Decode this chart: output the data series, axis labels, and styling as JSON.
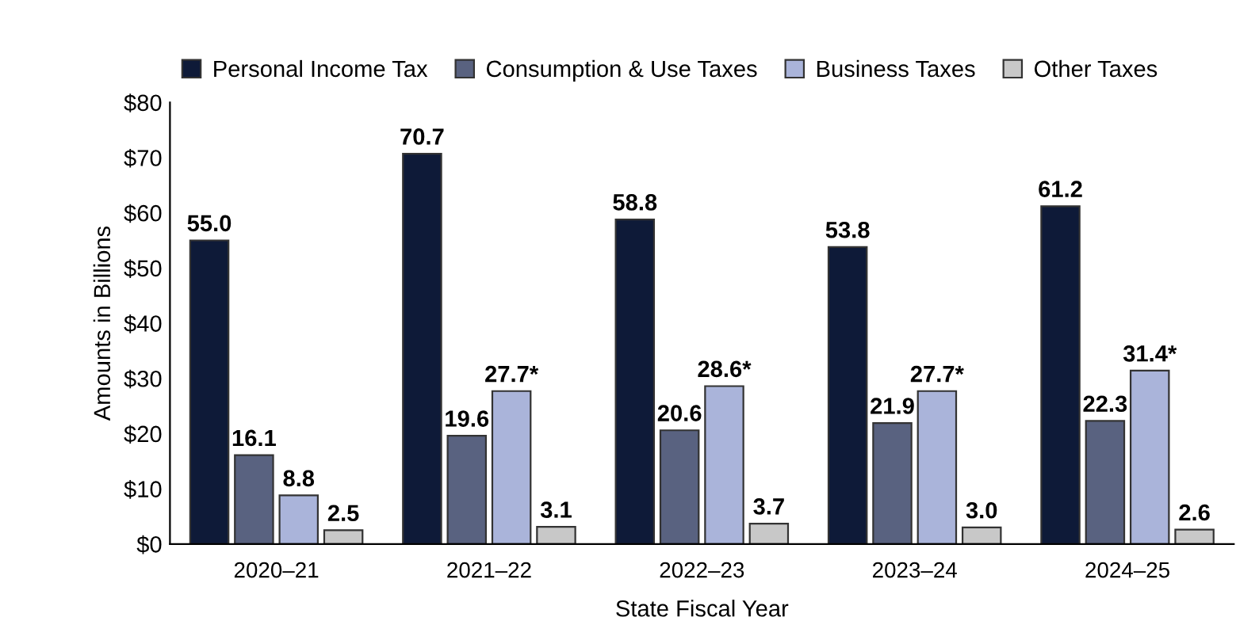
{
  "chart_data": {
    "type": "bar",
    "xlabel": "State Fiscal Year",
    "ylabel": "Amounts in Billions",
    "categories": [
      "2020–21",
      "2021–22",
      "2022–23",
      "2023–24",
      "2024–25"
    ],
    "series": [
      {
        "name": "Personal Income Tax",
        "color": "#0e1a38",
        "values": [
          55.0,
          70.7,
          58.8,
          53.8,
          61.2
        ],
        "value_labels": [
          "55.0",
          "70.7",
          "58.8",
          "53.8",
          "61.2"
        ]
      },
      {
        "name": "Consumption & Use Taxes",
        "color": "#596280",
        "values": [
          16.1,
          19.6,
          20.6,
          21.9,
          22.3
        ],
        "value_labels": [
          "16.1",
          "19.6",
          "20.6",
          "21.9",
          "22.3"
        ]
      },
      {
        "name": "Business Taxes",
        "color": "#aab4da",
        "values": [
          8.8,
          27.7,
          28.6,
          27.7,
          31.4
        ],
        "value_labels": [
          "8.8",
          "27.7*",
          "28.6*",
          "27.7*",
          "31.4*"
        ]
      },
      {
        "name": "Other Taxes",
        "color": "#c8c8c8",
        "values": [
          2.5,
          3.1,
          3.7,
          3.0,
          2.6
        ],
        "value_labels": [
          "2.5",
          "3.1",
          "3.7",
          "3.0",
          "2.6"
        ]
      }
    ],
    "ylim": [
      0,
      80
    ],
    "yticks": [
      {
        "value": 0,
        "label": "$0"
      },
      {
        "value": 10,
        "label": "$10"
      },
      {
        "value": 20,
        "label": "$20"
      },
      {
        "value": 30,
        "label": "$30"
      },
      {
        "value": 40,
        "label": "$40"
      },
      {
        "value": 50,
        "label": "$50"
      },
      {
        "value": 60,
        "label": "$60"
      },
      {
        "value": 70,
        "label": "$70"
      },
      {
        "value": 80,
        "label": "$80"
      }
    ],
    "grid": false,
    "legend": "top"
  }
}
